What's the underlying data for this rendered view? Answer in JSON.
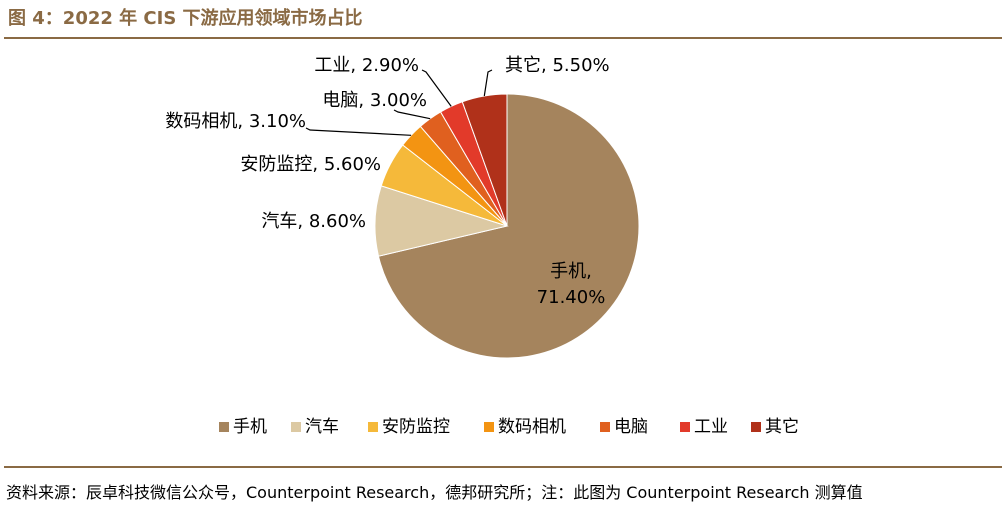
{
  "header": {
    "title": "图 4：2022 年 CIS 下游应用领域市场占比"
  },
  "footer": {
    "source": "资料来源：辰卓科技微信公众号，Counterpoint Research，德邦研究所；注：此图为 Counterpoint Research 测算值"
  },
  "chart_data": {
    "type": "pie",
    "title": "",
    "categories": [
      "手机",
      "汽车",
      "安防监控",
      "数码相机",
      "电脑",
      "工业",
      "其它"
    ],
    "values": [
      71.4,
      8.6,
      5.6,
      3.1,
      3.0,
      2.9,
      5.5
    ],
    "labels": [
      "71.40%",
      "8.60%",
      "5.60%",
      "3.10%",
      "3.00%",
      "2.90%",
      "5.50%"
    ],
    "colors": [
      "#a5845d",
      "#dcc9a3",
      "#f5b93a",
      "#f39412",
      "#e0601f",
      "#e23a2a",
      "#b0311a"
    ],
    "legend": "bottom",
    "start": "12 o'clock",
    "direction": "clockwise"
  }
}
